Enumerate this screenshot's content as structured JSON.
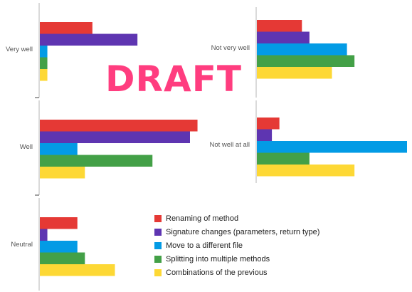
{
  "watermark": "DRAFT",
  "chart_data": {
    "type": "bar",
    "orientation": "horizontal",
    "legend_position": "bottom-right",
    "grid": false,
    "colors": [
      "#e53935",
      "#5e35b1",
      "#039be5",
      "#43a047",
      "#fdd835"
    ],
    "series": [
      {
        "name": "Renaming of method"
      },
      {
        "name": "Signature changes (parameters, return type)"
      },
      {
        "name": "Move to a different file"
      },
      {
        "name": "Splitting into multiple methods"
      },
      {
        "name": "Combinations of the previous"
      }
    ],
    "panels": [
      {
        "category": "Very well",
        "values": [
          7,
          13,
          1,
          1,
          1
        ]
      },
      {
        "category": "Not very well",
        "values": [
          6,
          7,
          12,
          13,
          10
        ]
      },
      {
        "category": "Well",
        "values": [
          21,
          20,
          5,
          15,
          6
        ]
      },
      {
        "category": "Not well at all",
        "values": [
          3,
          2,
          20,
          7,
          13
        ]
      },
      {
        "category": "Neutral",
        "values": [
          5,
          1,
          5,
          6,
          10
        ]
      }
    ]
  }
}
